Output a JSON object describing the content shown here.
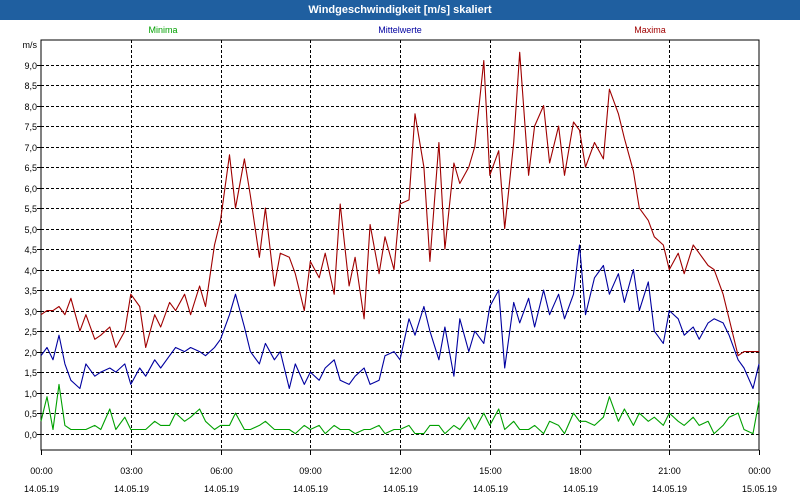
{
  "window": {
    "title": "Windgeschwindigkeit [m/s] skaliert"
  },
  "colors": {
    "titlebar": "#1f5fa0",
    "minima": "#00a000",
    "mittelwerte": "#0000a0",
    "maxima": "#a00000",
    "grid": "#000000"
  },
  "chart_data": {
    "type": "line",
    "title": "Windgeschwindigkeit [m/s] skaliert",
    "ylabel": "m/s",
    "ylim": [
      -0.4,
      9.6
    ],
    "xlim": [
      0,
      24
    ],
    "yticks": [
      "0,0",
      "0,5",
      "1,0",
      "1,5",
      "2,0",
      "2,5",
      "3,0",
      "3,5",
      "4,0",
      "4,5",
      "5,0",
      "5,5",
      "6,0",
      "6,5",
      "7,0",
      "7,5",
      "8,0",
      "8,5",
      "9,0"
    ],
    "xticks": [
      {
        "time": "00:00",
        "date": "14.05.19"
      },
      {
        "time": "03:00",
        "date": "14.05.19"
      },
      {
        "time": "06:00",
        "date": "14.05.19"
      },
      {
        "time": "09:00",
        "date": "14.05.19"
      },
      {
        "time": "12:00",
        "date": "14.05.19"
      },
      {
        "time": "15:00",
        "date": "14.05.19"
      },
      {
        "time": "18:00",
        "date": "14.05.19"
      },
      {
        "time": "21:00",
        "date": "14.05.19"
      },
      {
        "time": "00:00",
        "date": "15.05.19"
      }
    ],
    "grid": true,
    "legend": "top",
    "series": [
      {
        "name": "Minima",
        "color": "#00a000",
        "x": [
          0,
          0.2,
          0.4,
          0.6,
          0.8,
          1.0,
          1.3,
          1.5,
          1.8,
          2.0,
          2.3,
          2.5,
          2.8,
          3.0,
          3.3,
          3.5,
          3.8,
          4.0,
          4.3,
          4.5,
          4.8,
          5.0,
          5.3,
          5.5,
          5.8,
          6.0,
          6.3,
          6.5,
          6.8,
          7.0,
          7.3,
          7.5,
          7.8,
          8.0,
          8.3,
          8.5,
          8.8,
          9.0,
          9.3,
          9.5,
          9.8,
          10.0,
          10.3,
          10.5,
          10.8,
          11.0,
          11.3,
          11.5,
          11.8,
          12.0,
          12.3,
          12.5,
          12.8,
          13.0,
          13.3,
          13.5,
          13.8,
          14.0,
          14.3,
          14.5,
          14.8,
          15.0,
          15.3,
          15.5,
          15.8,
          16.0,
          16.3,
          16.5,
          16.8,
          17.0,
          17.3,
          17.5,
          17.8,
          18.0,
          18.2,
          18.5,
          18.8,
          19.0,
          19.3,
          19.5,
          19.8,
          20.0,
          20.3,
          20.5,
          20.8,
          21.0,
          21.3,
          21.5,
          21.8,
          22.0,
          22.3,
          22.5,
          22.8,
          23.0,
          23.3,
          23.5,
          23.8,
          24.0
        ],
        "values": [
          0.3,
          0.9,
          0.1,
          1.2,
          0.2,
          0.1,
          0.1,
          0.1,
          0.2,
          0.1,
          0.6,
          0.1,
          0.4,
          0.1,
          0.1,
          0.1,
          0.3,
          0.2,
          0.2,
          0.5,
          0.3,
          0.4,
          0.6,
          0.3,
          0.1,
          0.2,
          0.2,
          0.5,
          0.1,
          0.1,
          0.2,
          0.3,
          0.1,
          0.1,
          0.1,
          0.0,
          0.2,
          0.1,
          0.2,
          0.0,
          0.2,
          0.1,
          0.1,
          0.0,
          0.1,
          0.1,
          0.2,
          0.0,
          0.1,
          0.1,
          0.2,
          0.0,
          0.0,
          0.2,
          0.2,
          0.0,
          0.2,
          0.1,
          0.4,
          0.1,
          0.5,
          0.2,
          0.6,
          0.1,
          0.3,
          0.1,
          0.1,
          0.2,
          0.0,
          0.3,
          0.2,
          0.0,
          0.5,
          0.3,
          0.3,
          0.2,
          0.4,
          0.9,
          0.3,
          0.6,
          0.2,
          0.5,
          0.3,
          0.4,
          0.2,
          0.5,
          0.3,
          0.2,
          0.4,
          0.2,
          0.3,
          0.0,
          0.2,
          0.4,
          0.5,
          0.1,
          0.0,
          0.8
        ]
      },
      {
        "name": "Mittelwerte",
        "color": "#0000a0",
        "x": [
          0,
          0.2,
          0.4,
          0.6,
          0.8,
          1.0,
          1.3,
          1.5,
          1.8,
          2.0,
          2.3,
          2.5,
          2.8,
          3.0,
          3.3,
          3.5,
          3.8,
          4.0,
          4.3,
          4.5,
          4.8,
          5.0,
          5.3,
          5.5,
          5.8,
          6.0,
          6.3,
          6.5,
          6.8,
          7.0,
          7.3,
          7.5,
          7.8,
          8.0,
          8.3,
          8.5,
          8.8,
          9.0,
          9.3,
          9.5,
          9.8,
          10.0,
          10.3,
          10.5,
          10.8,
          11.0,
          11.3,
          11.5,
          11.8,
          12.0,
          12.3,
          12.5,
          12.8,
          13.0,
          13.3,
          13.5,
          13.8,
          14.0,
          14.3,
          14.5,
          14.8,
          15.0,
          15.3,
          15.5,
          15.8,
          16.0,
          16.3,
          16.5,
          16.8,
          17.0,
          17.3,
          17.5,
          17.8,
          18.0,
          18.2,
          18.5,
          18.8,
          19.0,
          19.3,
          19.5,
          19.8,
          20.0,
          20.3,
          20.5,
          20.8,
          21.0,
          21.3,
          21.5,
          21.8,
          22.0,
          22.3,
          22.5,
          22.8,
          23.0,
          23.3,
          23.5,
          23.8,
          24.0
        ],
        "values": [
          1.9,
          2.1,
          1.8,
          2.4,
          1.7,
          1.3,
          1.1,
          1.7,
          1.4,
          1.5,
          1.6,
          1.5,
          1.7,
          1.2,
          1.6,
          1.4,
          1.8,
          1.6,
          1.9,
          2.1,
          2.0,
          2.1,
          2.0,
          1.9,
          2.1,
          2.3,
          2.9,
          3.4,
          2.6,
          2.0,
          1.7,
          2.2,
          1.8,
          2.0,
          1.1,
          1.7,
          1.2,
          1.5,
          1.3,
          1.6,
          1.8,
          1.3,
          1.2,
          1.4,
          1.6,
          1.2,
          1.3,
          1.9,
          2.0,
          1.8,
          2.8,
          2.4,
          3.1,
          2.5,
          1.8,
          2.6,
          1.4,
          2.8,
          2.0,
          2.5,
          2.2,
          3.1,
          3.5,
          1.6,
          3.2,
          2.7,
          3.3,
          2.6,
          3.5,
          2.9,
          3.4,
          2.8,
          3.4,
          4.6,
          2.9,
          3.8,
          4.1,
          3.4,
          3.9,
          3.2,
          4.0,
          3.0,
          3.7,
          2.5,
          2.2,
          3.0,
          2.8,
          2.4,
          2.6,
          2.3,
          2.7,
          2.8,
          2.7,
          2.4,
          1.8,
          1.6,
          1.1,
          1.7
        ]
      },
      {
        "name": "Maxima",
        "color": "#a00000",
        "x": [
          0,
          0.2,
          0.4,
          0.6,
          0.8,
          1.0,
          1.3,
          1.5,
          1.8,
          2.0,
          2.3,
          2.5,
          2.8,
          3.0,
          3.3,
          3.5,
          3.8,
          4.0,
          4.3,
          4.5,
          4.8,
          5.0,
          5.3,
          5.5,
          5.8,
          6.0,
          6.3,
          6.5,
          6.8,
          7.0,
          7.3,
          7.5,
          7.8,
          8.0,
          8.3,
          8.5,
          8.8,
          9.0,
          9.3,
          9.5,
          9.8,
          10.0,
          10.3,
          10.5,
          10.8,
          11.0,
          11.3,
          11.5,
          11.8,
          12.0,
          12.3,
          12.5,
          12.8,
          13.0,
          13.3,
          13.5,
          13.8,
          14.0,
          14.3,
          14.5,
          14.8,
          15.0,
          15.3,
          15.5,
          15.8,
          16.0,
          16.3,
          16.5,
          16.8,
          17.0,
          17.3,
          17.5,
          17.8,
          18.0,
          18.2,
          18.5,
          18.8,
          19.0,
          19.3,
          19.5,
          19.8,
          20.0,
          20.3,
          20.5,
          20.8,
          21.0,
          21.3,
          21.5,
          21.8,
          22.0,
          22.3,
          22.5,
          22.8,
          23.0,
          23.3,
          23.5,
          23.8,
          24.0
        ],
        "values": [
          2.9,
          3.0,
          3.0,
          3.1,
          2.9,
          3.3,
          2.5,
          2.9,
          2.3,
          2.4,
          2.6,
          2.1,
          2.5,
          3.4,
          3.1,
          2.1,
          2.9,
          2.6,
          3.2,
          3.0,
          3.4,
          2.9,
          3.6,
          3.1,
          4.6,
          5.2,
          6.8,
          5.5,
          6.7,
          5.8,
          4.3,
          5.5,
          3.6,
          4.4,
          4.3,
          3.9,
          3.0,
          4.2,
          3.8,
          4.4,
          3.4,
          5.6,
          3.6,
          4.3,
          2.8,
          5.1,
          3.9,
          4.8,
          4.0,
          5.6,
          5.7,
          7.8,
          6.5,
          4.2,
          7.1,
          4.5,
          6.6,
          6.1,
          6.5,
          7.0,
          9.1,
          6.3,
          6.9,
          5.0,
          7.1,
          9.3,
          6.3,
          7.5,
          8.0,
          6.6,
          7.5,
          6.3,
          7.6,
          7.4,
          6.5,
          7.1,
          6.7,
          8.4,
          7.8,
          7.2,
          6.4,
          5.5,
          5.2,
          4.8,
          4.6,
          4.0,
          4.4,
          3.9,
          4.6,
          4.4,
          4.1,
          4.0,
          3.4,
          2.8,
          1.9,
          2.0,
          2.0,
          2.0
        ]
      }
    ]
  }
}
